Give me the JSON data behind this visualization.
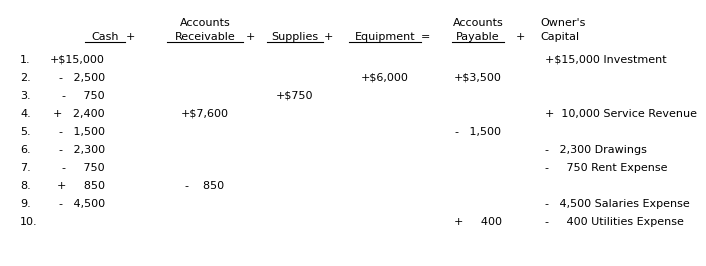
{
  "rows": [
    {
      "num": "1.",
      "cash": "+$15,000",
      "ar": "",
      "sup": "",
      "equip": "",
      "ap": "",
      "oe": "+$15,000 Investment"
    },
    {
      "num": "2.",
      "cash": "-   2,500",
      "ar": "",
      "sup": "",
      "equip": "+$6,000",
      "ap": "+$3,500",
      "oe": ""
    },
    {
      "num": "3.",
      "cash": "-     750",
      "ar": "",
      "sup": "+$750",
      "equip": "",
      "ap": "",
      "oe": ""
    },
    {
      "num": "4.",
      "cash": "+   2,400",
      "ar": "+$7,600",
      "sup": "",
      "equip": "",
      "ap": "",
      "oe": "+  10,000 Service Revenue"
    },
    {
      "num": "5.",
      "cash": "-   1,500",
      "ar": "",
      "sup": "",
      "equip": "",
      "ap": "-   1,500",
      "oe": ""
    },
    {
      "num": "6.",
      "cash": "-   2,300",
      "ar": "",
      "sup": "",
      "equip": "",
      "ap": "",
      "oe": "-   2,300 Drawings"
    },
    {
      "num": "7.",
      "cash": "-     750",
      "ar": "",
      "sup": "",
      "equip": "",
      "ap": "",
      "oe": "-     750 Rent Expense"
    },
    {
      "num": "8.",
      "cash": "+     850",
      "ar": "-    850",
      "sup": "",
      "equip": "",
      "ap": "",
      "oe": ""
    },
    {
      "num": "9.",
      "cash": "-   4,500",
      "ar": "",
      "sup": "",
      "equip": "",
      "ap": "",
      "oe": "-   4,500 Salaries Expense"
    },
    {
      "num": "10.",
      "cash": "",
      "ar": "",
      "sup": "",
      "equip": "",
      "ap": "+     400",
      "oe": "-     400 Utilities Expense"
    }
  ],
  "bg_color": "#ffffff",
  "text_color": "#000000"
}
